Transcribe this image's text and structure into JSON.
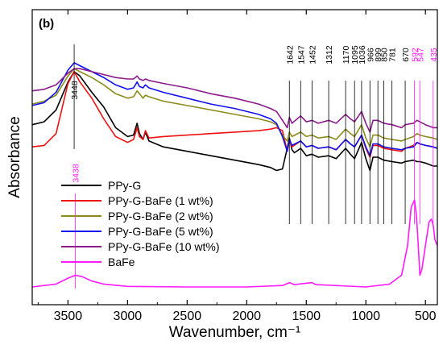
{
  "chart_data": {
    "type": "line",
    "panel_label": "(b)",
    "xlabel": "Wavenumber, cm⁻¹",
    "ylabel": "Absorbance",
    "xlim": [
      3800,
      400
    ],
    "x_reversed": true,
    "ylim": [
      0,
      1
    ],
    "y_ticks_shown": false,
    "x_ticks": [
      3500,
      3000,
      2500,
      2000,
      1500,
      1000,
      500
    ],
    "x_tick_labels": [
      "3500",
      "3000",
      "2500",
      "2000",
      "1500",
      "1000",
      "500"
    ],
    "legend_position": "bottom-left",
    "series": [
      {
        "name": "PPy-G",
        "color": "#000000",
        "points": [
          [
            3800,
            0.61
          ],
          [
            3700,
            0.62
          ],
          [
            3600,
            0.66
          ],
          [
            3500,
            0.755
          ],
          [
            3448,
            0.79
          ],
          [
            3400,
            0.775
          ],
          [
            3300,
            0.72
          ],
          [
            3200,
            0.67
          ],
          [
            3100,
            0.6
          ],
          [
            3000,
            0.57
          ],
          [
            2950,
            0.575
          ],
          [
            2920,
            0.615
          ],
          [
            2900,
            0.58
          ],
          [
            2870,
            0.56
          ],
          [
            2850,
            0.585
          ],
          [
            2820,
            0.555
          ],
          [
            2700,
            0.535
          ],
          [
            2500,
            0.52
          ],
          [
            2300,
            0.505
          ],
          [
            2100,
            0.49
          ],
          [
            1900,
            0.475
          ],
          [
            1800,
            0.465
          ],
          [
            1750,
            0.455
          ],
          [
            1700,
            0.46
          ],
          [
            1660,
            0.53
          ],
          [
            1642,
            0.565
          ],
          [
            1620,
            0.525
          ],
          [
            1600,
            0.515
          ],
          [
            1547,
            0.53
          ],
          [
            1500,
            0.505
          ],
          [
            1452,
            0.51
          ],
          [
            1400,
            0.5
          ],
          [
            1312,
            0.505
          ],
          [
            1250,
            0.495
          ],
          [
            1170,
            0.53
          ],
          [
            1130,
            0.51
          ],
          [
            1095,
            0.495
          ],
          [
            1036,
            0.55
          ],
          [
            1000,
            0.495
          ],
          [
            966,
            0.455
          ],
          [
            940,
            0.5
          ],
          [
            899,
            0.5
          ],
          [
            850,
            0.49
          ],
          [
            781,
            0.485
          ],
          [
            700,
            0.48
          ],
          [
            670,
            0.485
          ],
          [
            600,
            0.49
          ],
          [
            570,
            0.485
          ],
          [
            547,
            0.485
          ],
          [
            500,
            0.48
          ],
          [
            435,
            0.47
          ],
          [
            400,
            0.47
          ]
        ]
      },
      {
        "name": "PPy-G-BaFe (1 wt%)",
        "color": "#ee1111",
        "points": [
          [
            3800,
            0.535
          ],
          [
            3700,
            0.54
          ],
          [
            3600,
            0.58
          ],
          [
            3500,
            0.75
          ],
          [
            3448,
            0.79
          ],
          [
            3400,
            0.755
          ],
          [
            3300,
            0.7
          ],
          [
            3200,
            0.63
          ],
          [
            3100,
            0.57
          ],
          [
            3000,
            0.55
          ],
          [
            2950,
            0.56
          ],
          [
            2920,
            0.6
          ],
          [
            2900,
            0.57
          ],
          [
            2870,
            0.56
          ],
          [
            2850,
            0.59
          ],
          [
            2820,
            0.565
          ],
          [
            2700,
            0.57
          ],
          [
            2500,
            0.575
          ],
          [
            2300,
            0.58
          ],
          [
            2100,
            0.585
          ],
          [
            1900,
            0.59
          ],
          [
            1800,
            0.595
          ],
          [
            1750,
            0.6
          ],
          [
            1700,
            0.59
          ],
          [
            1660,
            0.52
          ],
          [
            1642,
            0.555
          ],
          [
            1620,
            0.535
          ],
          [
            1547,
            0.555
          ],
          [
            1500,
            0.535
          ],
          [
            1452,
            0.54
          ],
          [
            1400,
            0.53
          ],
          [
            1312,
            0.535
          ],
          [
            1250,
            0.525
          ],
          [
            1170,
            0.56
          ],
          [
            1130,
            0.545
          ],
          [
            1095,
            0.535
          ],
          [
            1036,
            0.575
          ],
          [
            1000,
            0.53
          ],
          [
            966,
            0.5
          ],
          [
            940,
            0.54
          ],
          [
            899,
            0.54
          ],
          [
            850,
            0.53
          ],
          [
            781,
            0.525
          ],
          [
            700,
            0.52
          ],
          [
            670,
            0.53
          ],
          [
            600,
            0.54
          ],
          [
            570,
            0.55
          ],
          [
            547,
            0.545
          ],
          [
            500,
            0.54
          ],
          [
            435,
            0.535
          ],
          [
            400,
            0.53
          ]
        ]
      },
      {
        "name": "PPy-G-BaFe (2 wt%)",
        "color": "#8b8b1a",
        "points": [
          [
            3800,
            0.68
          ],
          [
            3700,
            0.69
          ],
          [
            3600,
            0.71
          ],
          [
            3500,
            0.775
          ],
          [
            3448,
            0.8
          ],
          [
            3400,
            0.79
          ],
          [
            3300,
            0.77
          ],
          [
            3200,
            0.745
          ],
          [
            3100,
            0.715
          ],
          [
            3000,
            0.7
          ],
          [
            2950,
            0.705
          ],
          [
            2920,
            0.725
          ],
          [
            2900,
            0.715
          ],
          [
            2870,
            0.7
          ],
          [
            2850,
            0.71
          ],
          [
            2820,
            0.705
          ],
          [
            2700,
            0.69
          ],
          [
            2500,
            0.675
          ],
          [
            2300,
            0.66
          ],
          [
            2100,
            0.645
          ],
          [
            1900,
            0.63
          ],
          [
            1800,
            0.62
          ],
          [
            1750,
            0.61
          ],
          [
            1700,
            0.575
          ],
          [
            1660,
            0.555
          ],
          [
            1642,
            0.585
          ],
          [
            1620,
            0.57
          ],
          [
            1547,
            0.585
          ],
          [
            1500,
            0.57
          ],
          [
            1452,
            0.575
          ],
          [
            1400,
            0.565
          ],
          [
            1312,
            0.57
          ],
          [
            1250,
            0.56
          ],
          [
            1170,
            0.595
          ],
          [
            1130,
            0.58
          ],
          [
            1095,
            0.57
          ],
          [
            1036,
            0.61
          ],
          [
            1000,
            0.565
          ],
          [
            966,
            0.535
          ],
          [
            940,
            0.575
          ],
          [
            899,
            0.575
          ],
          [
            850,
            0.565
          ],
          [
            781,
            0.56
          ],
          [
            700,
            0.555
          ],
          [
            670,
            0.56
          ],
          [
            600,
            0.57
          ],
          [
            570,
            0.58
          ],
          [
            547,
            0.575
          ],
          [
            500,
            0.57
          ],
          [
            435,
            0.565
          ],
          [
            400,
            0.56
          ]
        ]
      },
      {
        "name": "PPy-G-BaFe (5 wt%)",
        "color": "#1111ee",
        "points": [
          [
            3800,
            0.675
          ],
          [
            3700,
            0.685
          ],
          [
            3600,
            0.72
          ],
          [
            3500,
            0.795
          ],
          [
            3448,
            0.82
          ],
          [
            3400,
            0.81
          ],
          [
            3300,
            0.79
          ],
          [
            3200,
            0.77
          ],
          [
            3100,
            0.745
          ],
          [
            3000,
            0.73
          ],
          [
            2950,
            0.735
          ],
          [
            2920,
            0.755
          ],
          [
            2900,
            0.74
          ],
          [
            2870,
            0.735
          ],
          [
            2850,
            0.745
          ],
          [
            2820,
            0.735
          ],
          [
            2700,
            0.72
          ],
          [
            2500,
            0.7
          ],
          [
            2300,
            0.68
          ],
          [
            2100,
            0.665
          ],
          [
            1900,
            0.645
          ],
          [
            1800,
            0.63
          ],
          [
            1750,
            0.615
          ],
          [
            1700,
            0.57
          ],
          [
            1660,
            0.52
          ],
          [
            1642,
            0.56
          ],
          [
            1620,
            0.54
          ],
          [
            1547,
            0.555
          ],
          [
            1500,
            0.535
          ],
          [
            1452,
            0.54
          ],
          [
            1400,
            0.53
          ],
          [
            1312,
            0.535
          ],
          [
            1250,
            0.525
          ],
          [
            1170,
            0.56
          ],
          [
            1130,
            0.545
          ],
          [
            1095,
            0.535
          ],
          [
            1036,
            0.575
          ],
          [
            1000,
            0.535
          ],
          [
            966,
            0.505
          ],
          [
            940,
            0.545
          ],
          [
            899,
            0.545
          ],
          [
            850,
            0.535
          ],
          [
            781,
            0.53
          ],
          [
            700,
            0.525
          ],
          [
            670,
            0.53
          ],
          [
            600,
            0.535
          ],
          [
            570,
            0.55
          ],
          [
            547,
            0.545
          ],
          [
            500,
            0.54
          ],
          [
            435,
            0.535
          ],
          [
            400,
            0.53
          ]
        ]
      },
      {
        "name": "PPy-G-BaFe (10 wt%)",
        "color": "#8b1a8b",
        "points": [
          [
            3800,
            0.725
          ],
          [
            3700,
            0.73
          ],
          [
            3600,
            0.745
          ],
          [
            3500,
            0.785
          ],
          [
            3448,
            0.8
          ],
          [
            3400,
            0.8
          ],
          [
            3300,
            0.79
          ],
          [
            3200,
            0.78
          ],
          [
            3100,
            0.77
          ],
          [
            3000,
            0.765
          ],
          [
            2950,
            0.765
          ],
          [
            2920,
            0.775
          ],
          [
            2900,
            0.765
          ],
          [
            2870,
            0.76
          ],
          [
            2850,
            0.765
          ],
          [
            2820,
            0.76
          ],
          [
            2700,
            0.75
          ],
          [
            2500,
            0.735
          ],
          [
            2300,
            0.715
          ],
          [
            2100,
            0.7
          ],
          [
            1900,
            0.68
          ],
          [
            1800,
            0.665
          ],
          [
            1750,
            0.655
          ],
          [
            1700,
            0.625
          ],
          [
            1660,
            0.6
          ],
          [
            1642,
            0.635
          ],
          [
            1620,
            0.615
          ],
          [
            1547,
            0.64
          ],
          [
            1500,
            0.62
          ],
          [
            1452,
            0.625
          ],
          [
            1400,
            0.615
          ],
          [
            1312,
            0.625
          ],
          [
            1250,
            0.615
          ],
          [
            1170,
            0.645
          ],
          [
            1130,
            0.63
          ],
          [
            1095,
            0.62
          ],
          [
            1036,
            0.655
          ],
          [
            1000,
            0.615
          ],
          [
            966,
            0.585
          ],
          [
            940,
            0.625
          ],
          [
            899,
            0.625
          ],
          [
            850,
            0.615
          ],
          [
            781,
            0.61
          ],
          [
            700,
            0.6
          ],
          [
            670,
            0.61
          ],
          [
            600,
            0.615
          ],
          [
            570,
            0.625
          ],
          [
            547,
            0.62
          ],
          [
            500,
            0.61
          ],
          [
            435,
            0.6
          ],
          [
            400,
            0.6
          ]
        ]
      },
      {
        "name": "BaFe",
        "color": "#ff1aff",
        "points": [
          [
            3800,
            0.06
          ],
          [
            3600,
            0.07
          ],
          [
            3500,
            0.09
          ],
          [
            3438,
            0.1
          ],
          [
            3380,
            0.095
          ],
          [
            3300,
            0.08
          ],
          [
            3200,
            0.07
          ],
          [
            3000,
            0.062
          ],
          [
            2500,
            0.06
          ],
          [
            2000,
            0.06
          ],
          [
            1700,
            0.065
          ],
          [
            1642,
            0.075
          ],
          [
            1600,
            0.068
          ],
          [
            1452,
            0.075
          ],
          [
            1420,
            0.068
          ],
          [
            1000,
            0.06
          ],
          [
            800,
            0.07
          ],
          [
            700,
            0.1
          ],
          [
            650,
            0.2
          ],
          [
            620,
            0.33
          ],
          [
            592,
            0.355
          ],
          [
            575,
            0.3
          ],
          [
            560,
            0.2
          ],
          [
            547,
            0.1
          ],
          [
            530,
            0.12
          ],
          [
            500,
            0.2
          ],
          [
            470,
            0.28
          ],
          [
            450,
            0.29
          ],
          [
            435,
            0.27
          ],
          [
            420,
            0.22
          ],
          [
            400,
            0.2
          ]
        ]
      }
    ],
    "peak_annotations": [
      {
        "x": 3448,
        "label": "3448",
        "color": "#000000"
      },
      {
        "x": 3438,
        "label": "3438",
        "color": "#ff1aff"
      },
      {
        "x": 1642,
        "label": "1642",
        "color": "#000000"
      },
      {
        "x": 1547,
        "label": "1547",
        "color": "#000000"
      },
      {
        "x": 1452,
        "label": "1452",
        "color": "#000000"
      },
      {
        "x": 1312,
        "label": "1312",
        "color": "#000000"
      },
      {
        "x": 1170,
        "label": "1170",
        "color": "#000000"
      },
      {
        "x": 1095,
        "label": "1095",
        "color": "#000000"
      },
      {
        "x": 1036,
        "label": "1036",
        "color": "#000000"
      },
      {
        "x": 966,
        "label": "966",
        "color": "#000000"
      },
      {
        "x": 899,
        "label": "899",
        "color": "#000000"
      },
      {
        "x": 850,
        "label": "850",
        "color": "#000000"
      },
      {
        "x": 781,
        "label": "781",
        "color": "#000000"
      },
      {
        "x": 670,
        "label": "670",
        "color": "#000000"
      },
      {
        "x": 592,
        "label": "592",
        "color": "#ff1aff"
      },
      {
        "x": 547,
        "label": "547",
        "color": "#ff1aff"
      },
      {
        "x": 435,
        "label": "435",
        "color": "#ff1aff"
      }
    ]
  }
}
